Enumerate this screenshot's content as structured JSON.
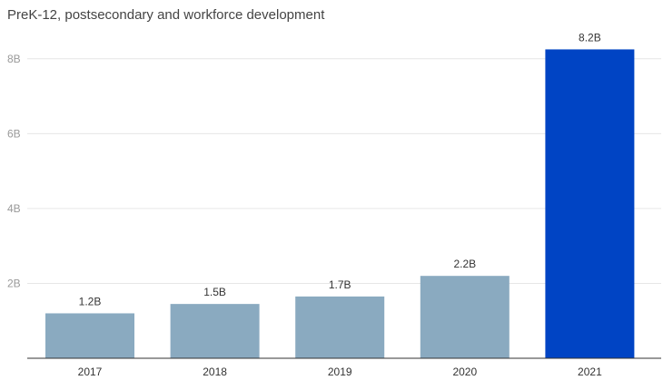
{
  "title": "PreK-12, postsecondary and workforce development",
  "chart_data": {
    "type": "bar",
    "title": "PreK-12, postsecondary and workforce development",
    "xlabel": "",
    "ylabel": "",
    "categories": [
      "2017",
      "2018",
      "2019",
      "2020",
      "2021"
    ],
    "values": [
      1.2,
      1.45,
      1.65,
      2.2,
      8.25
    ],
    "data_labels": [
      "1.2B",
      "1.5B",
      "1.7B",
      "2.2B",
      "8.2B"
    ],
    "yticks": [
      {
        "value": 2,
        "label": "2B"
      },
      {
        "value": 4,
        "label": "4B"
      },
      {
        "value": 6,
        "label": "6B"
      },
      {
        "value": 8,
        "label": "8B"
      }
    ],
    "ylim": [
      0,
      8.6
    ],
    "grid": true,
    "colors": {
      "bar": "#8aaac0",
      "highlight": "#0044c4",
      "grid": "#e6e6e6",
      "axis": "#333333"
    },
    "highlight_index": 4
  }
}
